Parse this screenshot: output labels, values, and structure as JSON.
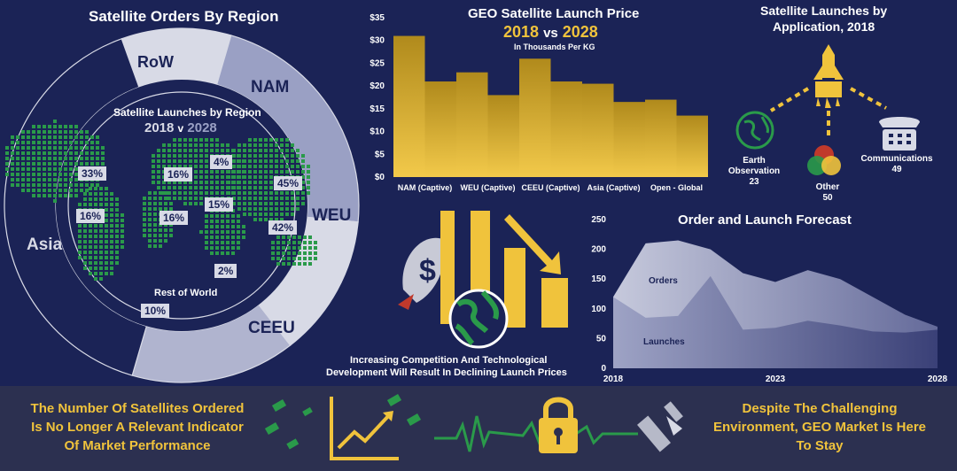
{
  "region_panel": {
    "title": "Satellite Orders By Region",
    "ring_labels": [
      "RoW",
      "NAM",
      "WEU",
      "CEEU",
      "Asia"
    ],
    "inner_title": "Satellite Launches by Region",
    "year_a": "2018",
    "year_sep": "v",
    "year_b": "2028",
    "percents": [
      "33%",
      "16%",
      "16%",
      "16%",
      "4%",
      "15%",
      "45%",
      "42%",
      "2%",
      "10%"
    ],
    "row_label": "Rest of World"
  },
  "price_panel": {
    "title": "GEO Satellite Launch Price",
    "year_a": "2018",
    "vs": "vs",
    "year_b": "2028",
    "subtitle": "In Thousands Per KG"
  },
  "apps_panel": {
    "title_line1": "Satellite Launches by",
    "title_line2": "Application, 2018",
    "items": [
      {
        "name": "Earth Observation",
        "value": "23"
      },
      {
        "name": "Other",
        "value": "50"
      },
      {
        "name": "Communications",
        "value": "49"
      }
    ]
  },
  "middle_caption": {
    "line1": "Increasing Competition And Technological",
    "line2": "Development Will Result In Declining Launch Prices"
  },
  "forecast_panel": {
    "title": "Order and Launch Forecast",
    "series_orders": "Orders",
    "series_launches": "Launches"
  },
  "footer": {
    "left_line1": "The Number Of Satellites Ordered",
    "left_line2": "Is No Longer A Relevant Indicator",
    "left_line3": "Of Market Performance",
    "right_line1": "Despite The Challenging",
    "right_line2": "Environment, GEO Market Is Here",
    "right_line3": "To Stay"
  },
  "colors": {
    "background": "#1b2356",
    "gold": "#f0c33c",
    "ring_light": "#d8dae6",
    "ring_mid": "#9aa0c4",
    "map_green": "#2a9a4a"
  },
  "chart_data": [
    {
      "type": "bar",
      "title": "GEO Satellite Launch Price",
      "categories": [
        "NAM (Captive)",
        "WEU (Captive)",
        "CEEU (Captive)",
        "Asia (Captive)",
        "Open - Global"
      ],
      "series": [
        {
          "name": "2018",
          "values": [
            31,
            23,
            26,
            20.5,
            17
          ]
        },
        {
          "name": "2028",
          "values": [
            21,
            18,
            21,
            16.5,
            13.5
          ]
        }
      ],
      "yticks": [
        "$0",
        "$5",
        "$10",
        "$15",
        "$20",
        "$25",
        "$30",
        "$35"
      ],
      "ylim": [
        0,
        35
      ]
    },
    {
      "type": "area",
      "title": "Order and Launch Forecast",
      "x": [
        2018,
        2019,
        2020,
        2021,
        2022,
        2023,
        2024,
        2025,
        2026,
        2027,
        2028
      ],
      "xticks": [
        "2018",
        "2023",
        "2028"
      ],
      "yticks": [
        "0",
        "50",
        "100",
        "150",
        "200",
        "250"
      ],
      "ylim": [
        0,
        250
      ],
      "series": [
        {
          "name": "Orders",
          "values": [
            120,
            210,
            215,
            200,
            160,
            145,
            165,
            150,
            120,
            90,
            70
          ]
        },
        {
          "name": "Launches",
          "values": [
            120,
            85,
            88,
            155,
            65,
            68,
            80,
            72,
            62,
            60,
            65
          ]
        }
      ]
    },
    {
      "type": "pie",
      "title": "Satellite Orders By Region",
      "categories": [
        "RoW",
        "NAM",
        "WEU",
        "CEEU",
        "Asia"
      ],
      "values": [
        10,
        22,
        13,
        15,
        40
      ]
    }
  ]
}
